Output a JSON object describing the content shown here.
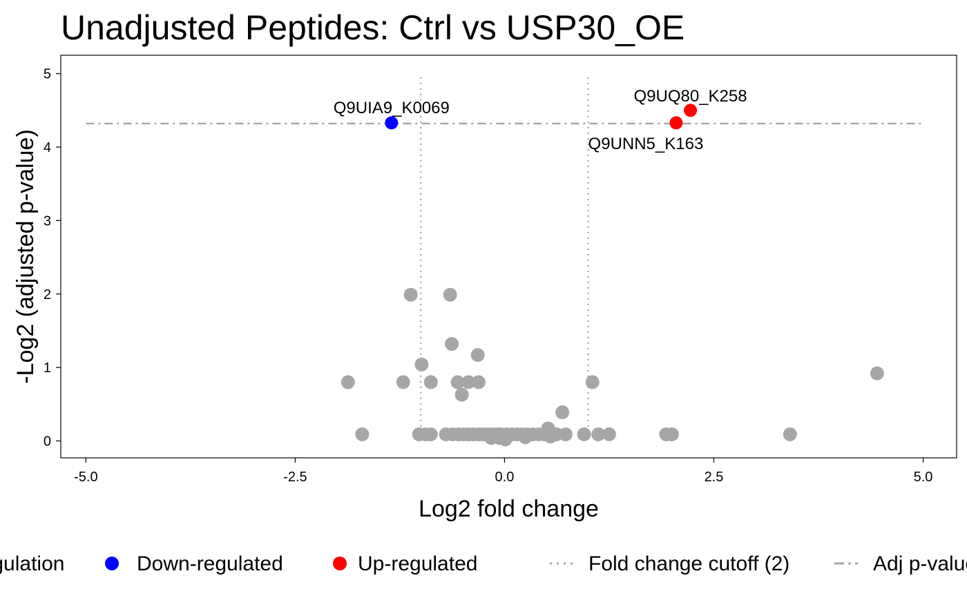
{
  "chart_data": {
    "type": "scatter",
    "title": "Unadjusted Peptides: Ctrl vs USP30_OE",
    "xlabel": "Log2 fold change",
    "ylabel": "-Log2 (adjusted p-value)",
    "xlim": [
      -5.3,
      5.4
    ],
    "ylim": [
      -0.23,
      5.25
    ],
    "x_ticks": [
      -5,
      -2.5,
      0,
      2.5,
      5
    ],
    "x_tick_labels": [
      "-5.0",
      "-2.5",
      "0.0",
      "2.5",
      "5.0"
    ],
    "y_ticks": [
      0,
      1,
      2,
      3,
      4,
      5
    ],
    "y_tick_labels": [
      "0",
      "1",
      "2",
      "3",
      "4",
      "5"
    ],
    "grid": false,
    "legend_position": "bottom",
    "fold_change_cutoff_x": [
      -1,
      1
    ],
    "adj_p_threshold_y": 4.32,
    "threshold_line_x_range": [
      -5,
      5
    ],
    "colors": {
      "not_significant": "#a6a6a6",
      "down": "#0000ff",
      "up": "#ff0000",
      "reference_line": "#a6a6a6"
    },
    "series": [
      {
        "name": "Down-regulated",
        "color": "#0000ff",
        "points": [
          {
            "x": -1.35,
            "y": 4.33,
            "label": "Q9UIA9_K0069"
          }
        ]
      },
      {
        "name": "Up-regulated",
        "color": "#ff0000",
        "points": [
          {
            "x": 2.22,
            "y": 4.5,
            "label": "Q9UQ80_K258"
          },
          {
            "x": 2.05,
            "y": 4.33,
            "label": "Q9UNN5_K163"
          }
        ]
      },
      {
        "color": "#a6a6a6",
        "points": [
          {
            "x": -1.12,
            "y": 1.99
          },
          {
            "x": -0.65,
            "y": 1.99
          },
          {
            "x": -0.63,
            "y": 1.32
          },
          {
            "x": -0.32,
            "y": 1.17
          },
          {
            "x": -0.99,
            "y": 1.04
          },
          {
            "x": 4.45,
            "y": 0.92
          },
          {
            "x": -1.87,
            "y": 0.8
          },
          {
            "x": -1.21,
            "y": 0.8
          },
          {
            "x": -0.88,
            "y": 0.8
          },
          {
            "x": -0.56,
            "y": 0.8
          },
          {
            "x": -0.43,
            "y": 0.8
          },
          {
            "x": -0.31,
            "y": 0.8
          },
          {
            "x": 1.05,
            "y": 0.8
          },
          {
            "x": -0.51,
            "y": 0.63
          },
          {
            "x": 0.69,
            "y": 0.39
          },
          {
            "x": 0.52,
            "y": 0.17
          },
          {
            "x": -1.7,
            "y": 0.09
          },
          {
            "x": -1.02,
            "y": 0.09
          },
          {
            "x": -0.94,
            "y": 0.09
          },
          {
            "x": -0.88,
            "y": 0.09
          },
          {
            "x": -0.7,
            "y": 0.09
          },
          {
            "x": -0.62,
            "y": 0.09
          },
          {
            "x": -0.55,
            "y": 0.09
          },
          {
            "x": -0.49,
            "y": 0.09
          },
          {
            "x": -0.43,
            "y": 0.09
          },
          {
            "x": -0.37,
            "y": 0.09
          },
          {
            "x": -0.31,
            "y": 0.09
          },
          {
            "x": -0.26,
            "y": 0.09
          },
          {
            "x": -0.21,
            "y": 0.09
          },
          {
            "x": -0.16,
            "y": 0.09
          },
          {
            "x": -0.11,
            "y": 0.09
          },
          {
            "x": -0.07,
            "y": 0.09
          },
          {
            "x": -0.04,
            "y": 0.09
          },
          {
            "x": 0.03,
            "y": 0.09
          },
          {
            "x": 0.09,
            "y": 0.09
          },
          {
            "x": 0.15,
            "y": 0.09
          },
          {
            "x": 0.21,
            "y": 0.09
          },
          {
            "x": 0.27,
            "y": 0.09
          },
          {
            "x": 0.34,
            "y": 0.09
          },
          {
            "x": 0.41,
            "y": 0.09
          },
          {
            "x": 0.48,
            "y": 0.09
          },
          {
            "x": 0.57,
            "y": 0.09
          },
          {
            "x": 0.62,
            "y": 0.09
          },
          {
            "x": 0.73,
            "y": 0.09
          },
          {
            "x": 0.95,
            "y": 0.09
          },
          {
            "x": 1.12,
            "y": 0.09
          },
          {
            "x": 1.25,
            "y": 0.09
          },
          {
            "x": 1.93,
            "y": 0.09
          },
          {
            "x": 2.0,
            "y": 0.09
          },
          {
            "x": 3.41,
            "y": 0.09
          },
          {
            "x": -0.16,
            "y": 0.04
          },
          {
            "x": -0.06,
            "y": 0.04
          },
          {
            "x": 0.01,
            "y": 0.02
          },
          {
            "x": 0.25,
            "y": 0.05
          },
          {
            "x": 0.55,
            "y": 0.06
          }
        ]
      }
    ],
    "legend": {
      "title": "Regulation",
      "items": [
        {
          "label": "Down-regulated",
          "type": "point",
          "color": "#0000ff"
        },
        {
          "label": "Up-regulated",
          "type": "point",
          "color": "#ff0000"
        },
        {
          "label": "Fold change cutoff (2)",
          "type": "dotted-line",
          "color": "#a6a6a6"
        },
        {
          "label": "Adj p-value",
          "type": "dashed-line",
          "color": "#a6a6a6"
        }
      ]
    }
  }
}
